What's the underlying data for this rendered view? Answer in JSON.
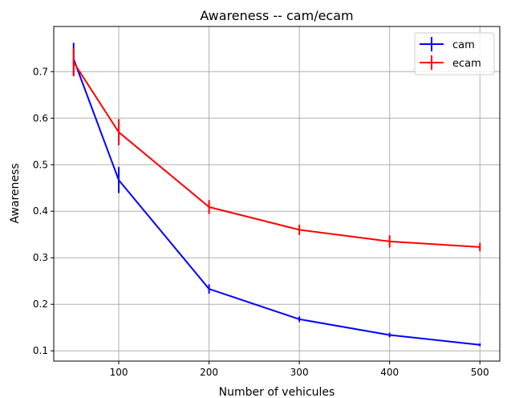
{
  "chart_data": {
    "type": "line",
    "title": "Awareness -- cam/ecam",
    "xlabel": "Number of vehicules",
    "ylabel": "Awareness",
    "xlim": [
      28,
      522
    ],
    "ylim": [
      0.078,
      0.797
    ],
    "xticks": [
      100,
      200,
      300,
      400,
      500
    ],
    "xtick_labels": [
      "100",
      "200",
      "300",
      "400",
      "500"
    ],
    "yticks": [
      0.1,
      0.2,
      0.3,
      0.4,
      0.5,
      0.6,
      0.7
    ],
    "ytick_labels": [
      "0.1",
      "0.2",
      "0.3",
      "0.4",
      "0.5",
      "0.6",
      "0.7"
    ],
    "grid": true,
    "legend_position": "top-right",
    "x": [
      50,
      100,
      200,
      300,
      400,
      500
    ],
    "series": [
      {
        "name": "cam",
        "color": "#0000ff",
        "values": [
          0.727,
          0.467,
          0.233,
          0.168,
          0.134,
          0.113
        ],
        "errors": [
          0.035,
          0.028,
          0.01,
          0.006,
          0.005,
          0.003
        ]
      },
      {
        "name": "ecam",
        "color": "#ff0000",
        "values": [
          0.72,
          0.57,
          0.409,
          0.36,
          0.335,
          0.323
        ],
        "errors": [
          0.03,
          0.028,
          0.015,
          0.011,
          0.013,
          0.009
        ]
      }
    ]
  }
}
